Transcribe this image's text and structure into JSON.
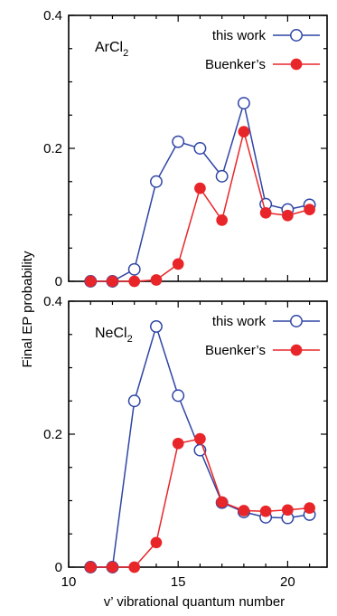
{
  "chart_data": {
    "type": "line",
    "ylabel": "Final EP probability",
    "xlabel": "v’ vibrational quantum number",
    "xlim": [
      10,
      21.8
    ],
    "xticks": [
      10,
      15,
      20
    ],
    "grid": false,
    "panels": [
      {
        "label": "ArCl",
        "label_sub": "2",
        "ylim": [
          0,
          0.4
        ],
        "yticks": [
          0,
          0.2,
          0.4
        ],
        "ytick_labels": [
          "0",
          "0.2",
          "0.4"
        ],
        "legend_placement": "top-right",
        "series": [
          {
            "name": "this work",
            "color": "#2f45a5",
            "marker": "open-circle",
            "x": [
              11,
              12,
              13,
              14,
              15,
              16,
              17,
              18,
              19,
              20,
              21
            ],
            "y": [
              0.0,
              0.0,
              0.018,
              0.15,
              0.21,
              0.2,
              0.158,
              0.268,
              0.116,
              0.108,
              0.115
            ]
          },
          {
            "name": "Buenker’s",
            "color": "#e8262a",
            "marker": "filled-circle",
            "x": [
              11,
              12,
              13,
              14,
              15,
              16,
              17,
              18,
              19,
              20,
              21
            ],
            "y": [
              0.0,
              0.0,
              0.0,
              0.002,
              0.026,
              0.14,
              0.092,
              0.225,
              0.103,
              0.099,
              0.108
            ]
          }
        ]
      },
      {
        "label": "NeCl",
        "label_sub": "2",
        "ylim": [
          0,
          0.4
        ],
        "yticks": [
          0,
          0.2,
          0.4
        ],
        "ytick_labels": [
          "0",
          "0.2",
          "0.4"
        ],
        "xtick_labels": [
          "10",
          "15",
          "20"
        ],
        "legend_placement": "top-right",
        "series": [
          {
            "name": "this work",
            "color": "#2f45a5",
            "marker": "open-circle",
            "x": [
              11,
              12,
              13,
              14,
              15,
              16,
              17,
              18,
              19,
              20,
              21
            ],
            "y": [
              0.0,
              0.0,
              0.25,
              0.362,
              0.258,
              0.176,
              0.097,
              0.083,
              0.075,
              0.074,
              0.079
            ]
          },
          {
            "name": "Buenker’s",
            "color": "#e8262a",
            "marker": "filled-circle",
            "x": [
              11,
              12,
              13,
              14,
              15,
              16,
              17,
              18,
              19,
              20,
              21
            ],
            "y": [
              0.0,
              0.0,
              0.0,
              0.037,
              0.186,
              0.193,
              0.098,
              0.085,
              0.084,
              0.086,
              0.089
            ]
          }
        ]
      }
    ]
  }
}
